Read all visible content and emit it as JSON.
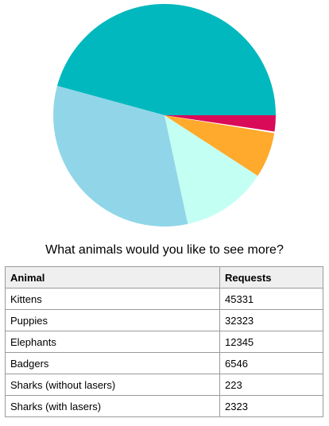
{
  "chart_data": {
    "type": "pie",
    "title": "What animals would you like to see more?",
    "start_angle_deg": 0,
    "direction": "counterclockwise",
    "slices": [
      {
        "label": "Kittens",
        "value": 45331,
        "color": "#00b8be"
      },
      {
        "label": "Puppies",
        "value": 32323,
        "color": "#90d6e8"
      },
      {
        "label": "Elephants",
        "value": 12345,
        "color": "#c4fff4"
      },
      {
        "label": "Badgers",
        "value": 6546,
        "color": "#ffaa2c"
      },
      {
        "label": "Sharks (without lasers)",
        "value": 223,
        "color": "#ffffff"
      },
      {
        "label": "Sharks (with lasers)",
        "value": 2323,
        "color": "#d90a58"
      }
    ]
  },
  "table": {
    "headers": [
      "Animal",
      "Requests"
    ],
    "rows": [
      [
        "Kittens",
        "45331"
      ],
      [
        "Puppies",
        "32323"
      ],
      [
        "Elephants",
        "12345"
      ],
      [
        "Badgers",
        "6546"
      ],
      [
        "Sharks (without lasers)",
        "223"
      ],
      [
        "Sharks (with lasers)",
        "2323"
      ]
    ]
  }
}
